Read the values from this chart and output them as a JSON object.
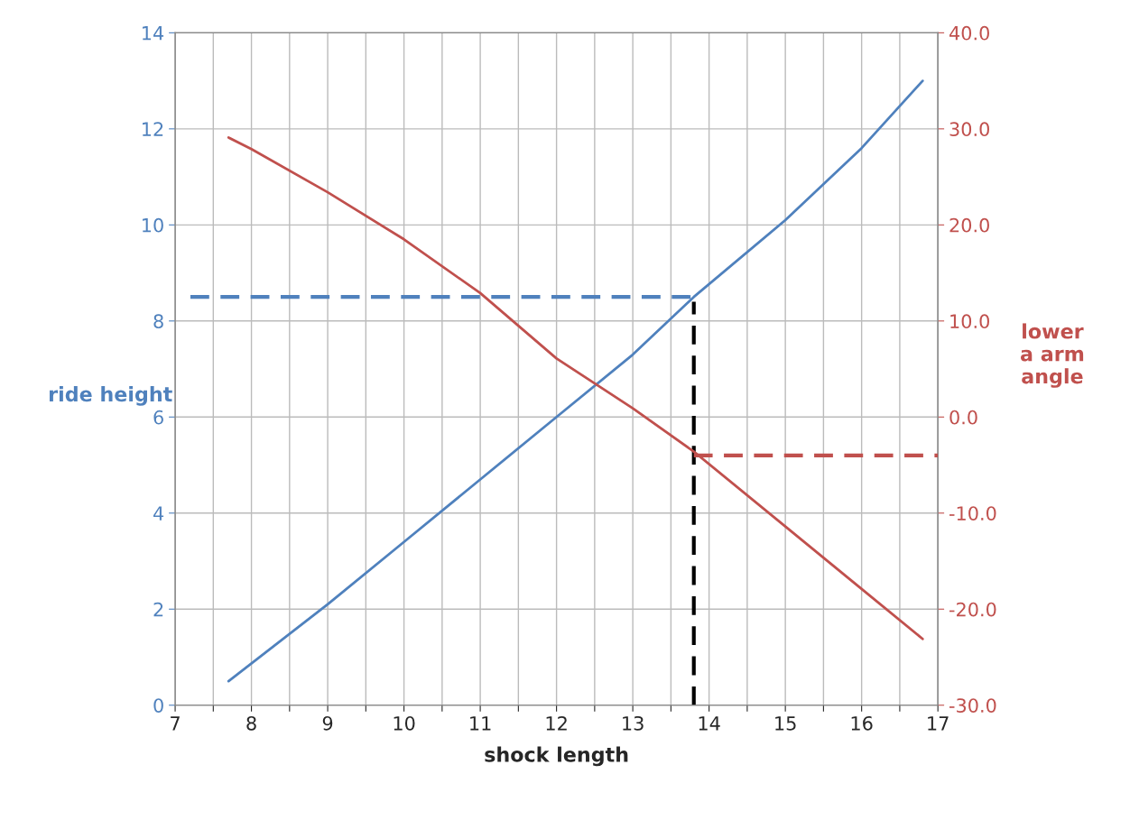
{
  "chart_data": {
    "type": "line",
    "xlabel": "shock length",
    "ylabel": "ride height",
    "y2label": "lower\na arm\nangle",
    "xlim": [
      7,
      17
    ],
    "xticks": [
      7,
      {
        "value": 7.5,
        "label": null
      },
      8,
      {
        "value": 8.5,
        "label": null
      },
      9,
      {
        "value": 9.5,
        "label": null
      },
      10,
      {
        "value": 10.5,
        "label": null
      },
      11,
      {
        "value": 11.5,
        "label": null
      },
      12,
      {
        "value": 12.5,
        "label": null
      },
      13,
      {
        "value": 13.5,
        "label": null
      },
      14,
      {
        "value": 14.5,
        "label": null
      },
      15,
      {
        "value": 15.5,
        "label": null
      },
      16,
      {
        "value": 16.5,
        "label": null
      },
      17
    ],
    "ylim": [
      0,
      14
    ],
    "yticks": [
      0,
      2,
      4,
      6,
      8,
      10,
      12,
      14
    ],
    "y2lim": [
      -30,
      40
    ],
    "y2ticks": [
      {
        "value": -30,
        "label": "-30.0"
      },
      {
        "value": -20,
        "label": "-20.0"
      },
      {
        "value": -10,
        "label": "-10.0"
      },
      {
        "value": 0,
        "label": "0.0"
      },
      {
        "value": 10,
        "label": "10.0"
      },
      {
        "value": 20,
        "label": "20.0"
      },
      {
        "value": 30,
        "label": "30.0"
      },
      {
        "value": 40,
        "label": "40.0"
      }
    ],
    "grid": true,
    "line_style": "solid",
    "series": [
      {
        "color": "#4f81bd",
        "x": [
          7.7,
          9,
          10,
          11,
          12,
          13,
          13.8,
          15,
          16,
          16.8
        ],
        "values": [
          0.5,
          2.1,
          3.4,
          4.7,
          6.0,
          7.3,
          8.5,
          10.1,
          11.6,
          13.0
        ]
      },
      {
        "color": "#c0504d",
        "axis": "y2",
        "x": [
          7.7,
          8,
          9,
          10,
          11,
          12,
          13,
          13.8,
          15,
          16,
          16.8
        ],
        "values": [
          29.1,
          27.9,
          23.4,
          18.5,
          12.9,
          6.1,
          0.9,
          -3.6,
          -11.4,
          -17.9,
          -23.1
        ]
      },
      {
        "color": "#4f81bd",
        "line_style": "dashed",
        "x": [
          7.2,
          13.8
        ],
        "values": [
          8.5,
          8.5
        ]
      },
      {
        "color": "#c0504d",
        "line_style": "dashed",
        "axis": "y2",
        "x": [
          13.8,
          17
        ],
        "values": [
          -4.0,
          -4.0
        ]
      },
      {
        "color": "#000000",
        "line_style": "dashed",
        "x": [
          13.8,
          13.8
        ],
        "values": [
          0,
          8.4
        ]
      }
    ]
  }
}
